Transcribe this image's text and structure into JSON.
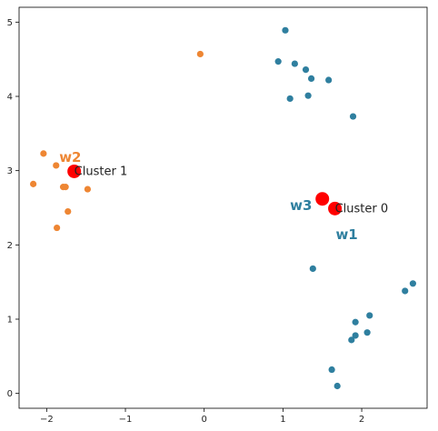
{
  "chart_data": {
    "type": "scatter",
    "title": "",
    "xlabel": "",
    "ylabel": "",
    "xlim": [
      -2.35,
      2.83
    ],
    "ylim": [
      -0.2,
      5.2
    ],
    "grid": false,
    "xticks": [
      -2,
      -1,
      0,
      1,
      2
    ],
    "yticks": [
      0,
      1,
      2,
      3,
      4,
      5
    ],
    "xtick_labels": [
      "−2",
      "−1",
      "0",
      "1",
      "2"
    ],
    "ytick_labels": [
      "0",
      "1",
      "2",
      "3",
      "4",
      "5"
    ],
    "series": [
      {
        "color": "#2f7f9f",
        "points": [
          [
            1.03,
            4.89
          ],
          [
            0.94,
            4.47
          ],
          [
            1.15,
            4.44
          ],
          [
            1.29,
            4.36
          ],
          [
            1.36,
            4.24
          ],
          [
            1.58,
            4.22
          ],
          [
            1.09,
            3.97
          ],
          [
            1.32,
            4.01
          ],
          [
            1.89,
            3.73
          ],
          [
            1.38,
            1.68
          ],
          [
            2.1,
            1.05
          ],
          [
            2.65,
            1.48
          ],
          [
            2.55,
            1.38
          ],
          [
            1.92,
            0.96
          ],
          [
            2.07,
            0.82
          ],
          [
            1.92,
            0.78
          ],
          [
            1.87,
            0.72
          ],
          [
            1.62,
            0.32
          ],
          [
            1.69,
            0.1
          ]
        ]
      },
      {
        "color": "#ee8633",
        "points": [
          [
            -0.05,
            4.57
          ],
          [
            -2.04,
            3.23
          ],
          [
            -1.88,
            3.07
          ],
          [
            -2.17,
            2.82
          ],
          [
            -1.79,
            2.78
          ],
          [
            -1.76,
            2.78
          ],
          [
            -1.48,
            2.75
          ],
          [
            -1.73,
            2.45
          ],
          [
            -1.87,
            2.23
          ]
        ]
      }
    ],
    "centroids": {
      "color": "#ff0000",
      "points": [
        [
          -1.65,
          2.99
        ],
        [
          1.5,
          2.62
        ],
        [
          1.66,
          2.49
        ]
      ]
    },
    "annotations": [
      {
        "text": "Cluster 1",
        "x": -1.65,
        "y": 2.99,
        "kind": "cluster",
        "color": "#222222"
      },
      {
        "text": "Cluster 0",
        "x": 1.66,
        "y": 2.49,
        "kind": "cluster",
        "color": "#222222"
      },
      {
        "text": "w2",
        "x": -1.84,
        "y": 3.18,
        "kind": "weight",
        "color": "#ee8633"
      },
      {
        "text": "w3",
        "x": 1.09,
        "y": 2.53,
        "kind": "weight",
        "color": "#2f7f9f"
      },
      {
        "text": "w1",
        "x": 1.67,
        "y": 2.14,
        "kind": "weight",
        "color": "#2f7f9f"
      }
    ]
  }
}
